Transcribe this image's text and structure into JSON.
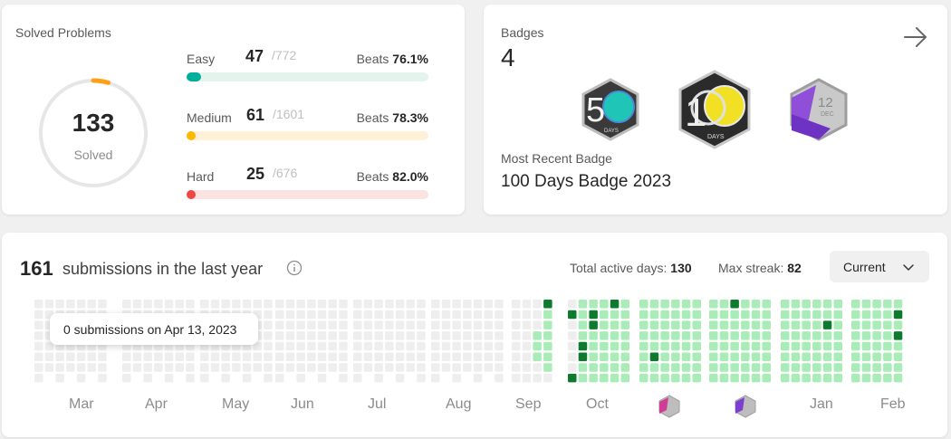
{
  "solved": {
    "title": "Solved Problems",
    "count": "133",
    "label": "Solved",
    "difficulties": [
      {
        "label": "Easy",
        "count": "47",
        "total": "/772",
        "beats_label": "Beats",
        "beats": "76.1%",
        "progress": 0.061,
        "fill_color": "#00af9b",
        "track_color": "#e3f4ed"
      },
      {
        "label": "Medium",
        "count": "61",
        "total": "/1601",
        "beats_label": "Beats",
        "beats": "78.3%",
        "progress": 0.038,
        "fill_color": "#ffb800",
        "track_color": "#fff1d7"
      },
      {
        "label": "Hard",
        "count": "25",
        "total": "/676",
        "beats_label": "Beats",
        "beats": "82.0%",
        "progress": 0.037,
        "fill_color": "#ef4743",
        "track_color": "#fbe3e2"
      }
    ],
    "ring_progress": 0.046,
    "ring_color": "#ffa116"
  },
  "badges": {
    "title": "Badges",
    "count": "4",
    "recent_label": "Most Recent Badge",
    "recent_name": "100 Days Badge 2023",
    "icon": "arrow-right-icon",
    "badge_50_text": "5",
    "badge_50_sub": "DAYS",
    "badge_100_text": "1",
    "badge_100_sub": "DAYS",
    "badge_dec_text": "12",
    "badge_dec_sub": "DEC"
  },
  "calendar": {
    "count": "161",
    "text": "submissions in the last year",
    "active_label": "Total active days:",
    "active_value": "130",
    "streak_label": "Max streak:",
    "streak_value": "82",
    "select_value": "Current",
    "tooltip": "0 submissions on Apr 13, 2023",
    "months": [
      "Mar",
      "Apr",
      "May",
      "Jun",
      "Jul",
      "Aug",
      "Sep",
      "Oct",
      "Jan",
      "Feb"
    ],
    "colors": {
      "empty": "#eeeeee",
      "light": "#a9ecb8",
      "dark": "#0e7a2e"
    }
  }
}
